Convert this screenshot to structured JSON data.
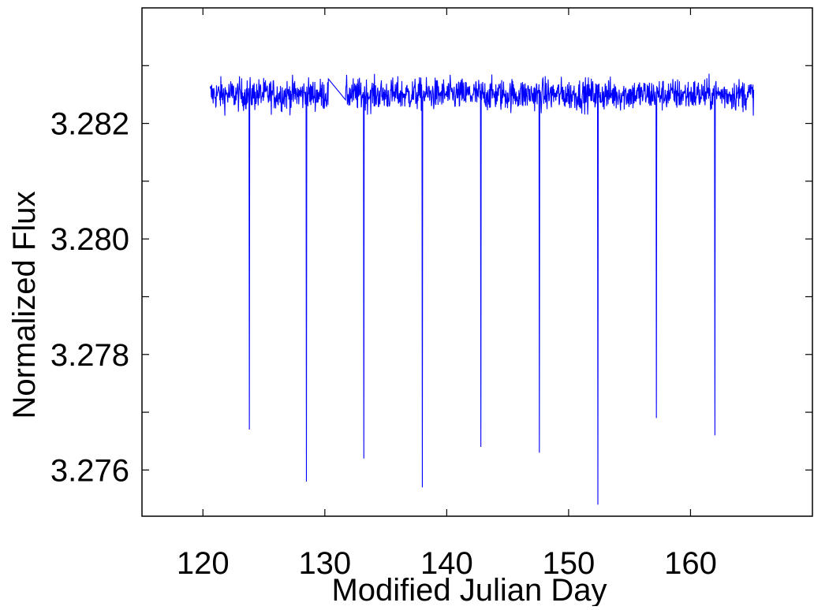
{
  "chart_data": {
    "type": "line",
    "title": "",
    "xlabel": "Modified Julian Day",
    "ylabel": "Normalized Flux",
    "xlim": [
      115,
      170
    ],
    "ylim": [
      3.2752,
      3.284
    ],
    "x_ticks": [
      120,
      130,
      140,
      150,
      160
    ],
    "x_tick_labels": [
      "120",
      "130",
      "140",
      "150",
      "160"
    ],
    "y_ticks": [
      3.276,
      3.278,
      3.28,
      3.282
    ],
    "y_tick_labels": [
      "3.276",
      "3.278",
      "3.280",
      "3.282"
    ],
    "y_minor_ticks": [
      3.277,
      3.279,
      3.281,
      3.283
    ],
    "grid": false,
    "legend": "none",
    "series_color": "#0000ff",
    "series": [
      {
        "baseline": 3.2825,
        "noise_amplitude": 0.0005,
        "x_start": 120.6,
        "x_end": 165.2,
        "data_gap": [
          130.3,
          131.7
        ],
        "transits": [
          {
            "x": 123.8,
            "min": 3.2767
          },
          {
            "x": 128.5,
            "min": 3.2758
          },
          {
            "x": 133.2,
            "min": 3.2762
          },
          {
            "x": 138.0,
            "min": 3.2757
          },
          {
            "x": 142.8,
            "min": 3.2764
          },
          {
            "x": 147.6,
            "min": 3.2763
          },
          {
            "x": 152.4,
            "min": 3.2754
          },
          {
            "x": 157.2,
            "min": 3.2769
          },
          {
            "x": 162.0,
            "min": 3.2766
          }
        ]
      }
    ]
  }
}
